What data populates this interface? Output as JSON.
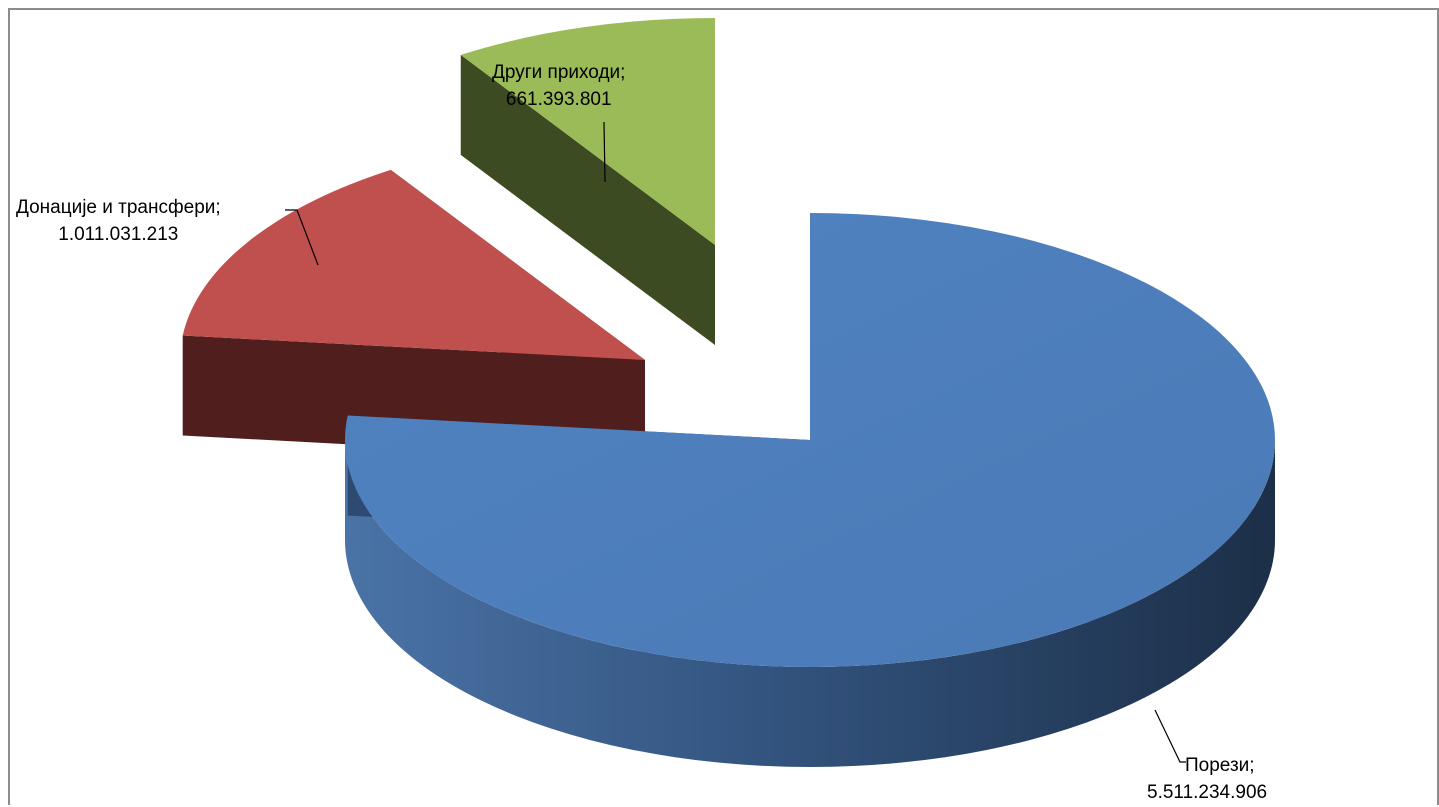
{
  "chart_data": {
    "type": "pie",
    "style": "3d-exploded",
    "title": "",
    "legend": "none",
    "slices": [
      {
        "name": "Порези",
        "value": 5511234906,
        "value_label": "5.511.234.906",
        "label": "Порези;",
        "color": "#4f81bd"
      },
      {
        "name": "Донације и трансфери",
        "value": 1011031213,
        "value_label": "1.011.031.213",
        "label": "Донације и трансфери;",
        "color": "#c0504d"
      },
      {
        "name": "Други приходи",
        "value": 661393801,
        "value_label": "661.393.801",
        "label": "Други приходи;",
        "color": "#9bbb59"
      }
    ]
  }
}
